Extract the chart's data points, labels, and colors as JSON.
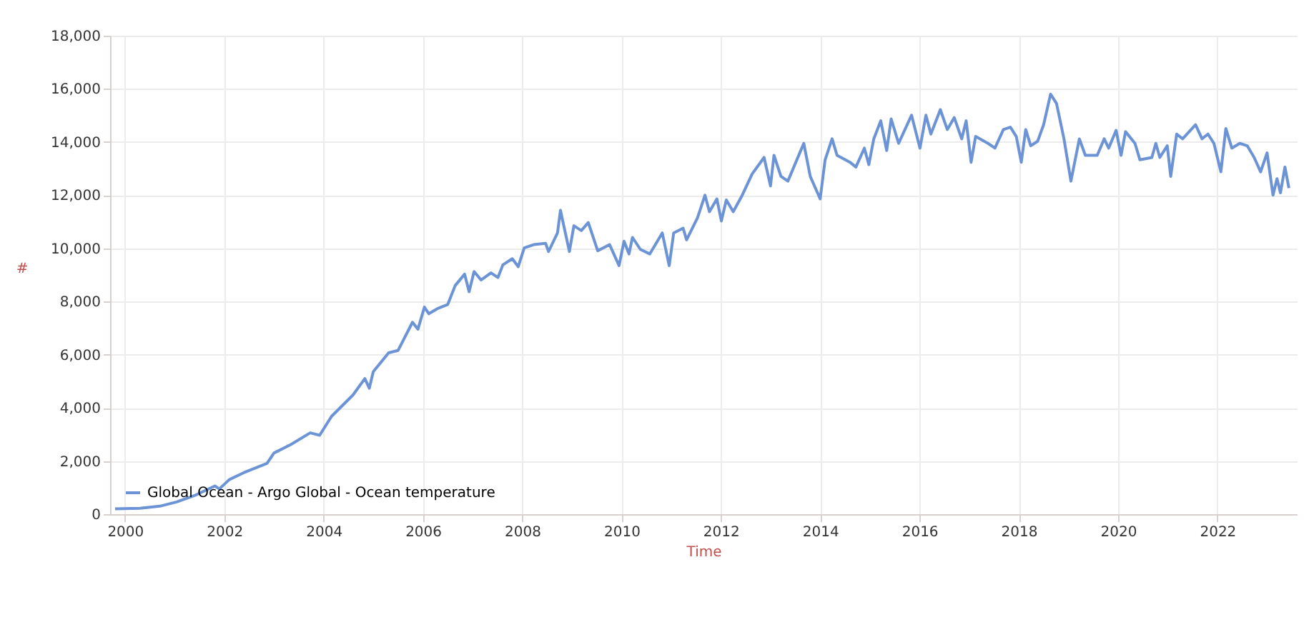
{
  "chart_data": {
    "type": "line",
    "xlabel": "Time",
    "ylabel": "#",
    "x": [
      1999.8,
      2000.3,
      2000.7,
      2001.04,
      2001.4,
      2001.81,
      2001.9,
      2002.1,
      2002.39,
      2002.86,
      2003.0,
      2003.34,
      2003.73,
      2003.92,
      2004.16,
      2004.59,
      2004.83,
      2004.92,
      2005.0,
      2005.31,
      2005.5,
      2005.79,
      2005.9,
      2006.03,
      2006.12,
      2006.31,
      2006.5,
      2006.65,
      2006.84,
      2006.93,
      2007.03,
      2007.17,
      2007.37,
      2007.51,
      2007.61,
      2007.8,
      2007.92,
      2008.04,
      2008.23,
      2008.47,
      2008.53,
      2008.71,
      2008.77,
      2008.95,
      2009.04,
      2009.19,
      2009.33,
      2009.52,
      2009.76,
      2009.95,
      2010.05,
      2010.15,
      2010.22,
      2010.38,
      2010.57,
      2010.82,
      2010.96,
      2011.05,
      2011.24,
      2011.31,
      2011.53,
      2011.68,
      2011.77,
      2011.92,
      2012.01,
      2012.11,
      2012.25,
      2012.42,
      2012.63,
      2012.87,
      2013.0,
      2013.07,
      2013.21,
      2013.35,
      2013.67,
      2013.8,
      2014.0,
      2014.1,
      2014.24,
      2014.34,
      2014.6,
      2014.72,
      2014.89,
      2014.98,
      2015.08,
      2015.22,
      2015.34,
      2015.43,
      2015.58,
      2015.84,
      2016.01,
      2016.13,
      2016.23,
      2016.42,
      2016.56,
      2016.7,
      2016.85,
      2016.94,
      2017.04,
      2017.13,
      2017.38,
      2017.52,
      2017.69,
      2017.83,
      2017.95,
      2018.05,
      2018.14,
      2018.24,
      2018.38,
      2018.5,
      2018.64,
      2018.76,
      2018.91,
      2019.05,
      2019.22,
      2019.34,
      2019.58,
      2019.72,
      2019.81,
      2019.96,
      2020.06,
      2020.15,
      2020.34,
      2020.44,
      2020.68,
      2020.76,
      2020.84,
      2020.99,
      2021.06,
      2021.18,
      2021.3,
      2021.56,
      2021.69,
      2021.81,
      2021.93,
      2022.07,
      2022.17,
      2022.29,
      2022.45,
      2022.6,
      2022.74,
      2022.87,
      2023.0,
      2023.12,
      2023.2,
      2023.27,
      2023.36,
      2023.44
    ],
    "series": [
      {
        "name": "Global Ocean - Argo Global - Ocean temperature",
        "color": "#6b93d6",
        "values": [
          200,
          220,
          300,
          460,
          700,
          1060,
          950,
          1300,
          1560,
          1910,
          2300,
          2620,
          3060,
          2970,
          3680,
          4480,
          5100,
          4740,
          5360,
          6070,
          6160,
          7220,
          6960,
          7790,
          7540,
          7750,
          7890,
          8600,
          9030,
          8370,
          9130,
          8810,
          9080,
          8900,
          9380,
          9610,
          9310,
          10020,
          10140,
          10190,
          9880,
          10580,
          11430,
          9880,
          10850,
          10670,
          10970,
          9910,
          10140,
          9350,
          10270,
          9790,
          10410,
          9960,
          9790,
          10580,
          9350,
          10580,
          10760,
          10320,
          11150,
          12000,
          11380,
          11860,
          11030,
          11820,
          11380,
          11960,
          12800,
          13420,
          12350,
          13500,
          12710,
          12530,
          13950,
          12710,
          11860,
          13330,
          14120,
          13500,
          13240,
          13060,
          13770,
          13150,
          14120,
          14800,
          13680,
          14870,
          13950,
          15010,
          13770,
          15010,
          14300,
          15220,
          14470,
          14920,
          14120,
          14800,
          13240,
          14210,
          13950,
          13770,
          14470,
          14560,
          14210,
          13240,
          14470,
          13860,
          14030,
          14650,
          15800,
          15450,
          14120,
          12530,
          14120,
          13500,
          13500,
          14120,
          13770,
          14440,
          13500,
          14390,
          13950,
          13330,
          13420,
          13950,
          13420,
          13860,
          12710,
          14300,
          14120,
          14650,
          14120,
          14300,
          13950,
          12880,
          14510,
          13770,
          13950,
          13860,
          13420,
          12880,
          13590,
          12000,
          12620,
          12090,
          13060,
          12270
        ]
      }
    ],
    "xlim": [
      1999.7,
      2023.6
    ],
    "xticks": [
      2000,
      2002,
      2004,
      2006,
      2008,
      2010,
      2012,
      2014,
      2016,
      2018,
      2020,
      2022
    ],
    "ylim": [
      0,
      18000
    ],
    "yticks": [
      0,
      {
        "value": 2000,
        "label": "2,000"
      },
      {
        "value": 4000,
        "label": "4,000"
      },
      {
        "value": 6000,
        "label": "6,000"
      },
      {
        "value": 8000,
        "label": "8,000"
      },
      {
        "value": 10000,
        "label": "10,000"
      },
      {
        "value": 12000,
        "label": "12,000"
      },
      {
        "value": 14000,
        "label": "14,000"
      },
      {
        "value": 16000,
        "label": "16,000"
      },
      {
        "value": 18000,
        "label": "18,000"
      }
    ],
    "grid": true,
    "legend": "bottom"
  }
}
